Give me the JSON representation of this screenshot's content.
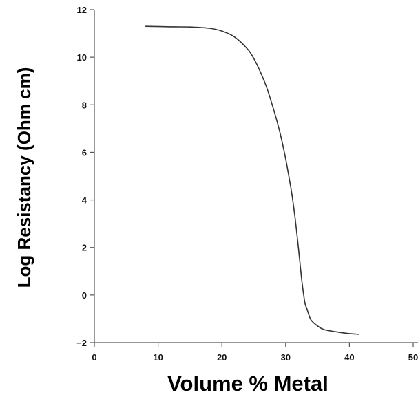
{
  "chart_data": {
    "type": "line",
    "title": "",
    "xlabel": "Volume % Metal",
    "ylabel": "Log Resistancy (Ohm cm)",
    "xlim": [
      0,
      50
    ],
    "ylim": [
      -2,
      12
    ],
    "x_ticks": [
      0,
      10,
      20,
      30,
      40,
      50
    ],
    "y_ticks": [
      -2,
      0,
      2,
      4,
      6,
      8,
      10,
      12
    ],
    "x_tick_labels": [
      "0",
      "10",
      "20",
      "30",
      "40",
      "50"
    ],
    "y_tick_labels": [
      "−2",
      "0",
      "2",
      "4",
      "6",
      "8",
      "10",
      "12"
    ],
    "grid": false,
    "legend": "none",
    "line_color": "#333333",
    "series": [
      {
        "x": [
          8,
          12,
          15,
          18,
          20,
          22,
          24,
          25,
          26,
          27,
          28,
          29,
          29.8,
          30.5,
          31,
          31.5,
          32,
          32.5,
          33,
          33.3,
          33.6,
          34,
          35,
          36,
          38,
          40,
          41.5
        ],
        "y": [
          11.3,
          11.28,
          11.27,
          11.22,
          11.1,
          10.85,
          10.35,
          9.95,
          9.4,
          8.75,
          7.9,
          6.95,
          6.0,
          5.0,
          4.2,
          3.2,
          2.0,
          0.7,
          -0.3,
          -0.55,
          -0.8,
          -1.05,
          -1.3,
          -1.45,
          -1.55,
          -1.62,
          -1.65
        ]
      }
    ]
  }
}
